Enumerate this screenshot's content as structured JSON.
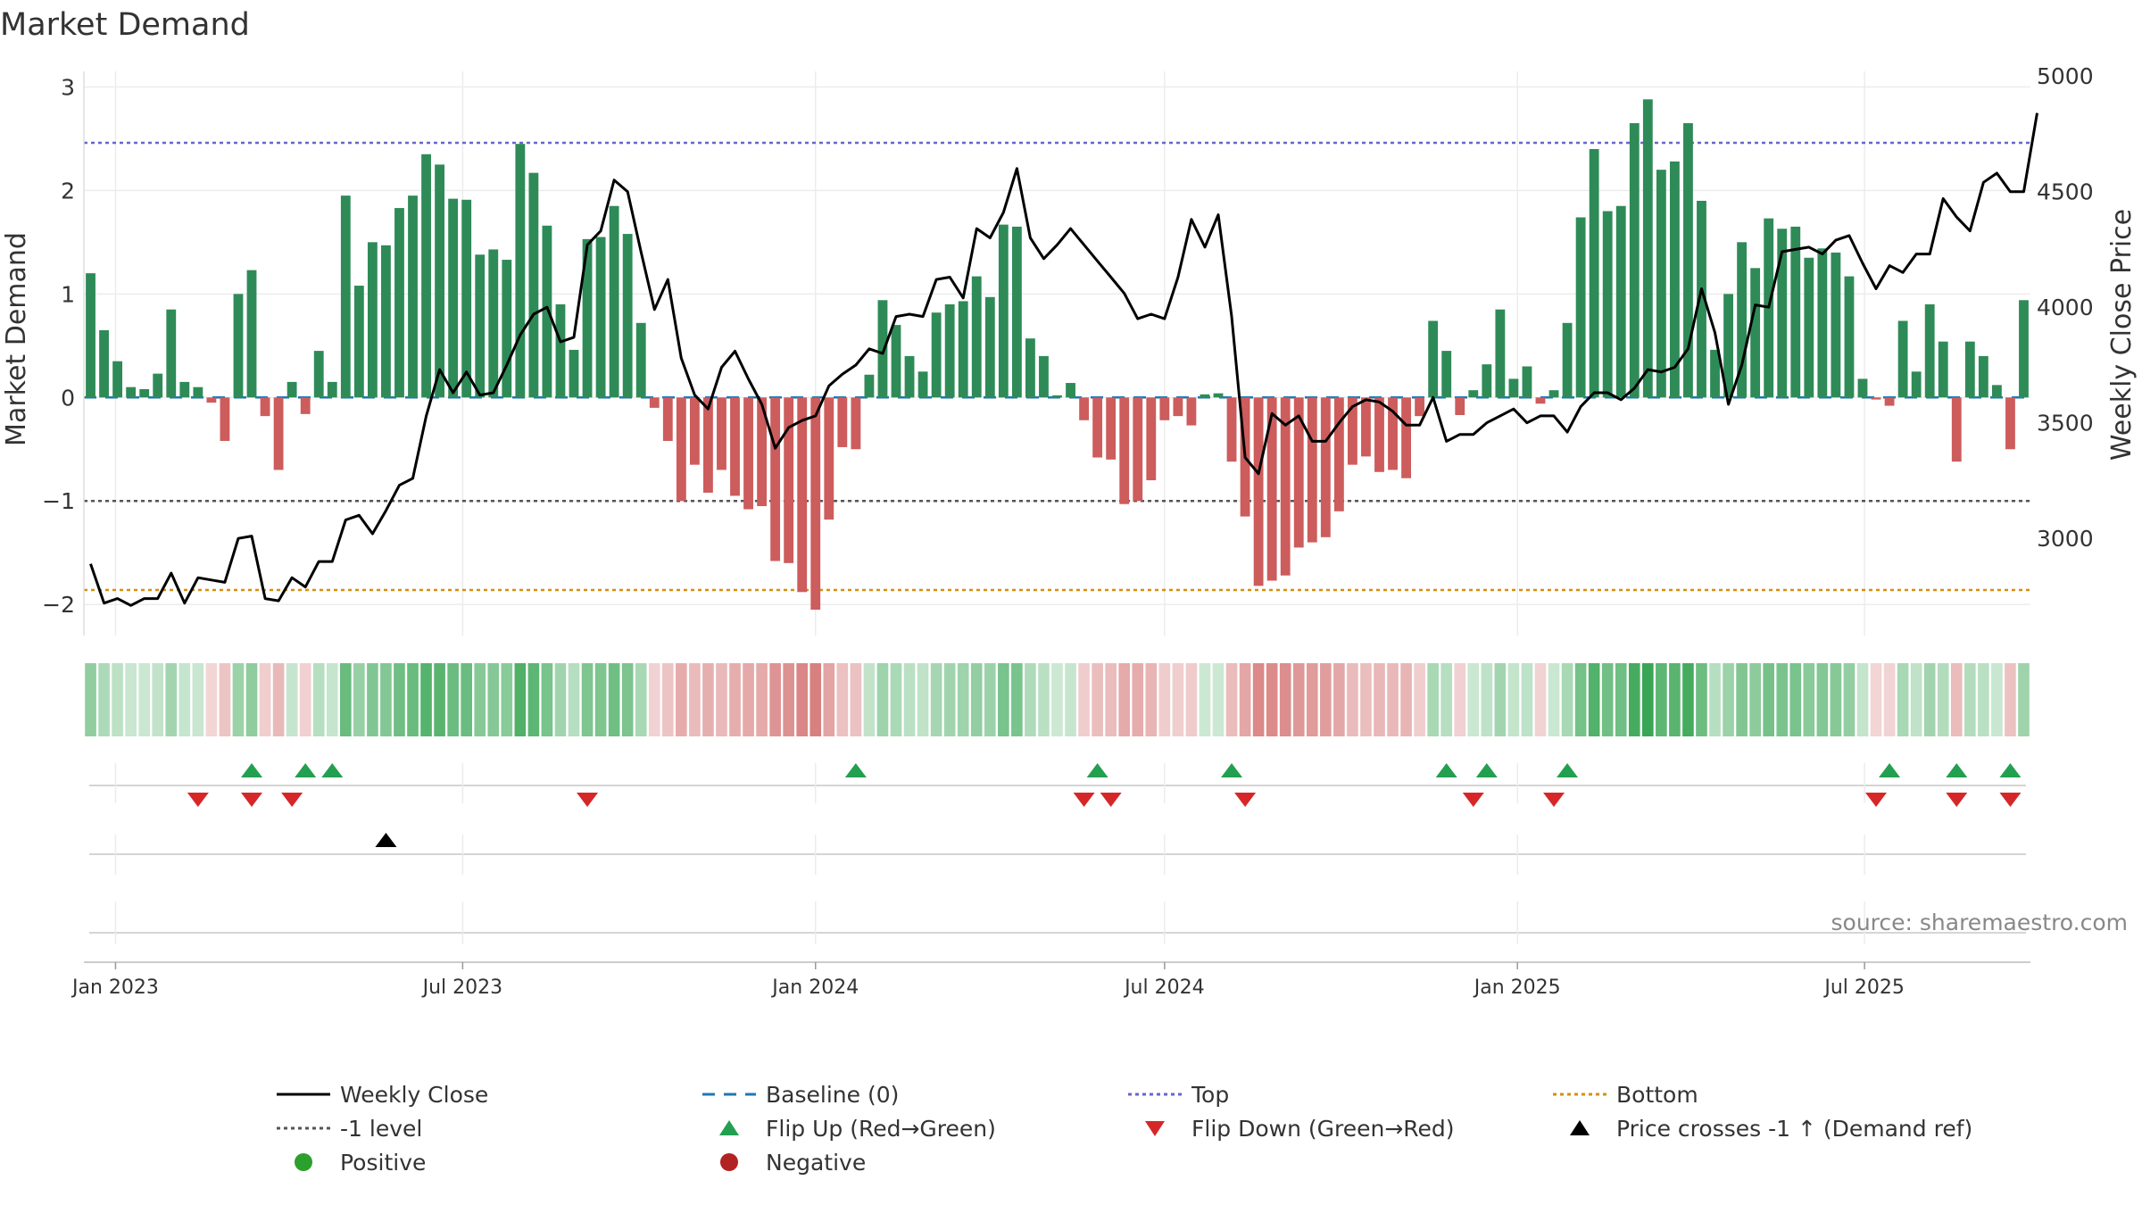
{
  "chart_data": {
    "type": "bar",
    "title": "Market Demand",
    "ylabel_left": "Market Demand",
    "ylabel_right": "Weekly Close Price",
    "ylim_left": [
      -2.3,
      3.15
    ],
    "ylim_right": [
      2580,
      5020
    ],
    "yticks_left": [
      3,
      2,
      1,
      0,
      -1,
      -2
    ],
    "yticks_right": [
      5000,
      4500,
      4000,
      3500,
      3000
    ],
    "ytick_labels_left": [
      "3",
      "2",
      "1",
      "0",
      "−1",
      "−2"
    ],
    "ytick_labels_right": [
      "5000",
      "4500",
      "4000",
      "3500",
      "3000"
    ],
    "x_start": "2022-12-19",
    "x_step_days": 7,
    "x_tick_dates": [
      "2023-01-01",
      "2023-07-01",
      "2024-01-01",
      "2024-07-01",
      "2025-01-01",
      "2025-07-01"
    ],
    "x_tick_labels": [
      "Jan 2023",
      "Jul 2023",
      "Jan 2024",
      "Jul 2024",
      "Jan 2025",
      "Jul 2025"
    ],
    "demand": [
      1.2,
      0.65,
      0.35,
      0.1,
      0.08,
      0.23,
      0.85,
      0.15,
      0.1,
      -0.05,
      -0.42,
      1.0,
      1.23,
      -0.18,
      -0.7,
      0.15,
      -0.16,
      0.45,
      0.15,
      1.95,
      1.08,
      1.5,
      1.47,
      1.83,
      1.95,
      2.35,
      2.25,
      1.92,
      1.91,
      1.38,
      1.43,
      1.33,
      2.45,
      2.17,
      1.66,
      0.9,
      0.46,
      1.53,
      1.55,
      1.85,
      1.58,
      0.72,
      -0.1,
      -0.42,
      -1.0,
      -0.65,
      -0.92,
      -0.7,
      -0.95,
      -1.08,
      -1.05,
      -1.58,
      -1.6,
      -1.88,
      -2.05,
      -1.18,
      -0.48,
      -0.5,
      0.22,
      0.94,
      0.7,
      0.4,
      0.25,
      0.82,
      0.9,
      0.93,
      1.17,
      0.97,
      1.67,
      1.65,
      0.57,
      0.4,
      0.02,
      0.14,
      -0.22,
      -0.58,
      -0.6,
      -1.03,
      -1.0,
      -0.8,
      -0.22,
      -0.18,
      -0.27,
      0.03,
      0.04,
      -0.62,
      -1.15,
      -1.82,
      -1.77,
      -1.72,
      -1.45,
      -1.4,
      -1.35,
      -1.1,
      -0.65,
      -0.57,
      -0.72,
      -0.7,
      -0.78,
      -0.18,
      0.74,
      0.45,
      -0.17,
      0.07,
      0.32,
      0.85,
      0.18,
      0.3,
      -0.06,
      0.07,
      0.72,
      1.74,
      2.4,
      1.8,
      1.85,
      2.65,
      2.88,
      2.2,
      2.28,
      2.65,
      1.9,
      0.46,
      1.0,
      1.5,
      1.25,
      1.73,
      1.63,
      1.65,
      1.35,
      1.44,
      1.4,
      1.17,
      0.18,
      -0.02,
      -0.08,
      0.74,
      0.25,
      0.9,
      0.54,
      -0.62,
      0.54,
      0.4,
      0.12,
      -0.5,
      0.94
    ],
    "weekly_close": [
      2890,
      2720,
      2740,
      2710,
      2740,
      2740,
      2850,
      2720,
      2830,
      2820,
      2810,
      3000,
      3010,
      2740,
      2730,
      2830,
      2790,
      2900,
      2900,
      3080,
      3100,
      3020,
      3120,
      3230,
      3260,
      3530,
      3730,
      3630,
      3720,
      3620,
      3630,
      3750,
      3880,
      3970,
      4000,
      3850,
      3870,
      4270,
      4330,
      4550,
      4500,
      4240,
      3990,
      4120,
      3780,
      3620,
      3560,
      3740,
      3810,
      3690,
      3580,
      3390,
      3480,
      3510,
      3530,
      3660,
      3710,
      3750,
      3820,
      3800,
      3960,
      3970,
      3960,
      4120,
      4130,
      4040,
      4340,
      4300,
      4410,
      4600,
      4300,
      4210,
      4270,
      4340,
      4270,
      4200,
      4130,
      4060,
      3950,
      3970,
      3950,
      4130,
      4380,
      4260,
      4400,
      3960,
      3350,
      3280,
      3540,
      3490,
      3530,
      3420,
      3420,
      3500,
      3570,
      3600,
      3590,
      3550,
      3490,
      3490,
      3610,
      3420,
      3450,
      3450,
      3500,
      3530,
      3560,
      3500,
      3530,
      3530,
      3460,
      3570,
      3630,
      3630,
      3600,
      3650,
      3730,
      3720,
      3740,
      3820,
      4080,
      3890,
      3580,
      3750,
      4010,
      4000,
      4240,
      4250,
      4260,
      4230,
      4290,
      4310,
      4190,
      4080,
      4180,
      4150,
      4230,
      4230,
      4470,
      4390,
      4330,
      4540,
      4580,
      4500,
      4500,
      4840
    ],
    "top": 2.46,
    "minus_one_level": -1,
    "bottom": -1.86,
    "flip_up": [
      "2023-03-13",
      "2023-04-10",
      "2023-04-24",
      "2024-01-22",
      "2024-05-27",
      "2024-08-05",
      "2024-11-25",
      "2024-12-16",
      "2025-01-27",
      "2025-07-14",
      "2025-08-18",
      "2025-09-15"
    ],
    "flip_down": [
      "2023-02-13",
      "2023-03-13",
      "2023-04-03",
      "2023-09-04",
      "2024-05-20",
      "2024-06-03",
      "2024-08-12",
      "2024-12-09",
      "2025-01-20",
      "2025-07-07",
      "2025-08-18",
      "2025-09-15"
    ],
    "price_cross": [
      "2023-05-22"
    ],
    "legend": [
      {
        "label": "Weekly Close",
        "kind": "line",
        "color": "#000000"
      },
      {
        "label": "Baseline (0)",
        "kind": "dash",
        "color": "#1f77b4"
      },
      {
        "label": "Top",
        "kind": "dot",
        "color": "#6666cc"
      },
      {
        "label": "Bottom",
        "kind": "dot",
        "color": "#d4900c"
      },
      {
        "label": "-1 level",
        "kind": "dot",
        "color": "#555555"
      },
      {
        "label": "Flip Up (Red→Green)",
        "kind": "tri-up",
        "color": "#22a050"
      },
      {
        "label": "Flip Down (Green→Red)",
        "kind": "tri-down",
        "color": "#d62728"
      },
      {
        "label": "Price crosses -1 ↑ (Demand ref)",
        "kind": "tri-up",
        "color": "#000000"
      },
      {
        "label": "Positive",
        "kind": "dot-marker",
        "color": "#2ca02c"
      },
      {
        "label": "Negative",
        "kind": "dot-marker",
        "color": "#b22222"
      }
    ],
    "source": "source: sharemaestro.com"
  },
  "colors": {
    "positive_bar": "#2e8b57",
    "negative_bar": "#cd5c5c",
    "price_line": "#000000",
    "baseline": "#1f77b4",
    "top_line": "#6666cc",
    "minus_one_line": "#555555",
    "bottom_line": "#d4900c",
    "heat_positive": "#3aa655",
    "heat_negative": "#cd5c5c"
  }
}
